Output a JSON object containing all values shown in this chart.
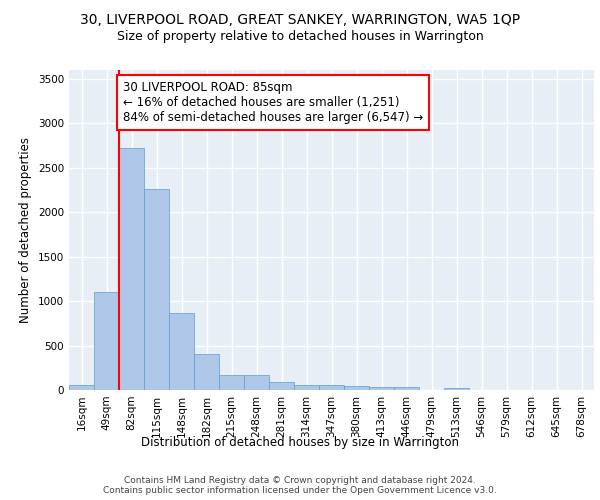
{
  "title_line1": "30, LIVERPOOL ROAD, GREAT SANKEY, WARRINGTON, WA5 1QP",
  "title_line2": "Size of property relative to detached houses in Warrington",
  "xlabel": "Distribution of detached houses by size in Warrington",
  "ylabel": "Number of detached properties",
  "categories": [
    "16sqm",
    "49sqm",
    "82sqm",
    "115sqm",
    "148sqm",
    "182sqm",
    "215sqm",
    "248sqm",
    "281sqm",
    "314sqm",
    "347sqm",
    "380sqm",
    "413sqm",
    "446sqm",
    "479sqm",
    "513sqm",
    "546sqm",
    "579sqm",
    "612sqm",
    "645sqm",
    "678sqm"
  ],
  "values": [
    55,
    1100,
    2720,
    2260,
    870,
    410,
    170,
    165,
    90,
    60,
    55,
    45,
    35,
    30,
    0,
    25,
    0,
    0,
    0,
    0,
    0
  ],
  "bar_color": "#aec6e8",
  "bar_edge_color": "#5a9fd4",
  "red_line_x": 2,
  "annotation_text": "30 LIVERPOOL ROAD: 85sqm\n← 16% of detached houses are smaller (1,251)\n84% of semi-detached houses are larger (6,547) →",
  "annotation_box_color": "white",
  "annotation_box_edge_color": "red",
  "red_line_color": "red",
  "ylim": [
    0,
    3600
  ],
  "yticks": [
    0,
    500,
    1000,
    1500,
    2000,
    2500,
    3000,
    3500
  ],
  "background_color": "#e8eef5",
  "grid_color": "white",
  "footer_line1": "Contains HM Land Registry data © Crown copyright and database right 2024.",
  "footer_line2": "Contains public sector information licensed under the Open Government Licence v3.0.",
  "title_fontsize": 10,
  "subtitle_fontsize": 9,
  "axis_label_fontsize": 8.5,
  "tick_fontsize": 7.5,
  "annotation_fontsize": 8.5,
  "footer_fontsize": 6.5
}
